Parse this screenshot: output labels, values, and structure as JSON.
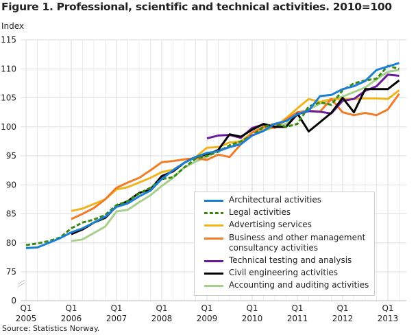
{
  "chart_data": {
    "type": "line",
    "title": "Figure 1. Professional, scientific and technical activities. 2010=100",
    "ylabel": "Index",
    "source": "Source: Statistics Norway.",
    "ylim": [
      75,
      115
    ],
    "y_ticks": [
      "115",
      "110",
      "105",
      "100",
      "95",
      "90",
      "85",
      "80",
      "75",
      "0"
    ],
    "y_axis_break": true,
    "x_range": [
      "2005Q1",
      "2013Q2"
    ],
    "x_ticks": [
      {
        "q": "Q1",
        "year": "2005"
      },
      {
        "q": "Q1",
        "year": "2006"
      },
      {
        "q": "Q1",
        "year": "2007"
      },
      {
        "q": "Q1",
        "year": "2008"
      },
      {
        "q": "Q1",
        "year": "2009"
      },
      {
        "q": "Q1",
        "year": "2010"
      },
      {
        "q": "Q1",
        "year": "2011"
      },
      {
        "q": "Q1",
        "year": "2012"
      },
      {
        "q": "Q1",
        "year": "2013"
      }
    ],
    "grid": true,
    "legend_position": "bottom-right",
    "series": [
      {
        "name": "Architectural activities",
        "color": "#1a7fd4",
        "dash": false,
        "start": "2005Q1",
        "values": [
          79.1,
          79.2,
          80.0,
          80.8,
          81.8,
          82.5,
          83.5,
          84.5,
          86.2,
          86.8,
          88.0,
          89.0,
          91.0,
          92.5,
          93.8,
          94.8,
          95.5,
          95.8,
          96.5,
          97.0,
          98.5,
          99.3,
          100.5,
          101.0,
          102.2,
          102.8,
          105.3,
          105.5,
          106.5,
          107.0,
          107.9,
          109.8,
          110.4,
          111.0
        ]
      },
      {
        "name": "Legal activities",
        "color": "#3a8a12",
        "dash": true,
        "start": "2005Q1",
        "values": [
          79.6,
          79.9,
          80.3,
          80.9,
          82.5,
          83.5,
          84.0,
          84.8,
          86.5,
          87.2,
          88.5,
          89.5,
          91.0,
          91.3,
          93.0,
          94.5,
          95.0,
          95.7,
          96.8,
          97.5,
          98.5,
          100.0,
          100.5,
          100.0,
          100.5,
          103.5,
          104.2,
          103.8,
          106.3,
          107.5,
          108.0,
          108.3,
          110.5,
          110.0
        ]
      },
      {
        "name": "Advertising services",
        "color": "#f0b51e",
        "dash": false,
        "start": "2006Q1",
        "values": [
          85.5,
          85.9,
          86.7,
          87.5,
          89.2,
          89.6,
          90.4,
          91.2,
          92.2,
          92.6,
          93.8,
          94.8,
          96.4,
          96.5,
          97.3,
          97.5,
          99.0,
          99.5,
          100.0,
          101.5,
          103.2,
          104.8,
          104.3,
          104.8,
          104.8,
          104.8,
          104.9,
          104.9,
          104.8,
          106.3
        ]
      },
      {
        "name": "Business and other management consultancy activities",
        "color": "#f07c28",
        "dash": false,
        "start": "2006Q1",
        "values": [
          84.1,
          85.0,
          86.0,
          87.5,
          89.5,
          90.4,
          91.2,
          92.5,
          93.9,
          94.1,
          94.4,
          94.6,
          94.3,
          95.2,
          94.8,
          97.0,
          99.0,
          100.0,
          99.8,
          101.3,
          102.5,
          102.8,
          102.6,
          104.8,
          102.5,
          102.0,
          102.4,
          102.0,
          103.0,
          105.7
        ]
      },
      {
        "name": "Technical testing and analysis",
        "color": "#6a1a96",
        "dash": false,
        "start": "2009Q1",
        "values": [
          98.0,
          98.5,
          98.6,
          98.1,
          99.8,
          100.4,
          100.0,
          100.0,
          102.2,
          102.7,
          102.6,
          102.3,
          104.5,
          104.8,
          106.2,
          107.0,
          109.0,
          108.8
        ]
      },
      {
        "name": "Civil engineering activities",
        "color": "#000000",
        "dash": false,
        "start": "2006Q1",
        "values": [
          81.5,
          82.3,
          83.5,
          84.3,
          86.3,
          87.2,
          88.6,
          89.2,
          91.5,
          92.3,
          93.8,
          94.8,
          95.2,
          96.0,
          98.7,
          98.3,
          99.5,
          100.5,
          100.0,
          100.0,
          102.3,
          99.2,
          100.8,
          102.4,
          105.0,
          102.5,
          106.5,
          106.5,
          106.5,
          108.0
        ]
      },
      {
        "name": "Accounting and auditing activities",
        "color": "#a6cf8c",
        "dash": false,
        "start": "2006Q1",
        "values": [
          80.3,
          80.6,
          81.7,
          82.8,
          85.4,
          85.7,
          87.0,
          88.2,
          89.8,
          91.2,
          93.0,
          94.0,
          94.8,
          96.0,
          96.5,
          97.3,
          98.5,
          99.3,
          100.0,
          100.5,
          102.0,
          103.0,
          104.0,
          104.7,
          105.2,
          106.0,
          106.8,
          108.2,
          109.5,
          109.8
        ]
      }
    ]
  }
}
